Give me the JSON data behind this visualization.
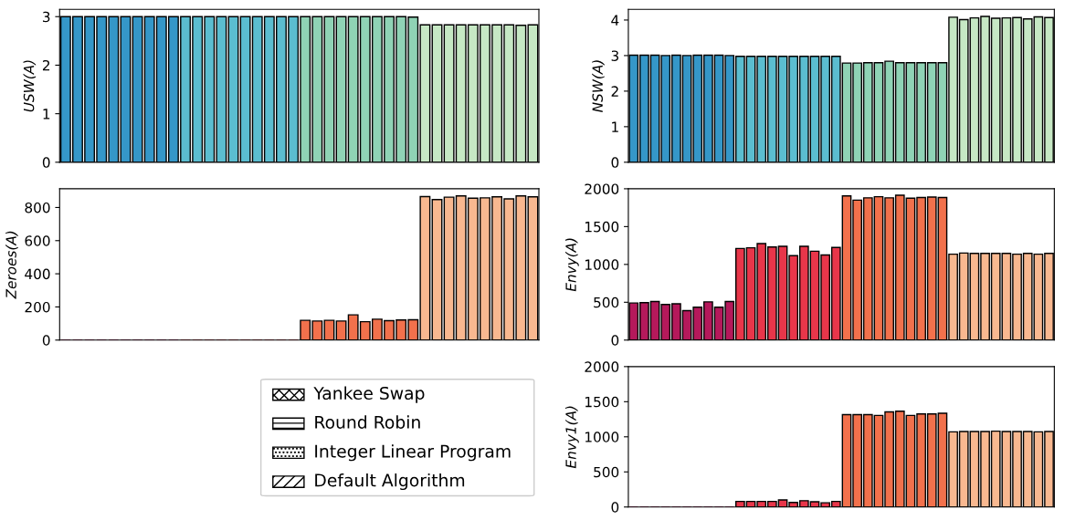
{
  "chart_data": [
    {
      "type": "bar",
      "ylabel": "USW(A)",
      "categories": [
        null,
        null,
        null,
        null,
        null,
        null,
        null,
        null,
        null,
        null,
        null,
        null,
        null,
        null,
        null,
        null,
        null,
        null,
        null,
        null,
        null,
        null,
        null,
        null,
        null,
        null,
        null,
        null,
        null,
        null,
        null,
        null,
        null,
        null,
        null,
        null,
        null,
        null,
        null,
        null
      ],
      "ylim": [
        0,
        3.15
      ],
      "yticks": [
        0,
        1,
        2,
        3
      ],
      "tick_labels": "y",
      "values": [
        3.0,
        3.0,
        3.0,
        3.0,
        3.0,
        3.0,
        3.0,
        3.0,
        3.0,
        3.0,
        3.0,
        3.0,
        3.0,
        3.0,
        3.0,
        3.0,
        3.0,
        3.0,
        3.0,
        3.0,
        3.0,
        3.0,
        3.0,
        3.0,
        3.0,
        3.0,
        3.0,
        3.0,
        3.0,
        2.99,
        2.83,
        2.83,
        2.83,
        2.83,
        2.83,
        2.83,
        2.83,
        2.83,
        2.82,
        2.83
      ],
      "colors": [
        "#3597c8",
        "#3597c8",
        "#3597c8",
        "#3597c8",
        "#3597c8",
        "#3597c8",
        "#3597c8",
        "#3597c8",
        "#3597c8",
        "#3597c8",
        "#5bbdd0",
        "#5bbdd0",
        "#5bbdd0",
        "#5bbdd0",
        "#5bbdd0",
        "#5bbdd0",
        "#5bbdd0",
        "#5bbdd0",
        "#5bbdd0",
        "#5bbdd0",
        "#8fd3b5",
        "#8fd3b5",
        "#8fd3b5",
        "#8fd3b5",
        "#8fd3b5",
        "#8fd3b5",
        "#8fd3b5",
        "#8fd3b5",
        "#8fd3b5",
        "#8fd3b5",
        "#c6e8c4",
        "#c6e8c4",
        "#c6e8c4",
        "#c6e8c4",
        "#c6e8c4",
        "#c6e8c4",
        "#c6e8c4",
        "#c6e8c4",
        "#c6e8c4",
        "#c6e8c4"
      ]
    },
    {
      "type": "bar",
      "ylabel": "NSW(A)",
      "categories": [
        null,
        null,
        null,
        null,
        null,
        null,
        null,
        null,
        null,
        null,
        null,
        null,
        null,
        null,
        null,
        null,
        null,
        null,
        null,
        null,
        null,
        null,
        null,
        null,
        null,
        null,
        null,
        null,
        null,
        null,
        null,
        null,
        null,
        null,
        null,
        null,
        null,
        null,
        null,
        null
      ],
      "ylim": [
        0,
        4.3
      ],
      "yticks": [
        0,
        1,
        2,
        3,
        4
      ],
      "tick_labels": "y",
      "values": [
        3.01,
        3.01,
        3.01,
        3.0,
        3.01,
        3.0,
        3.01,
        3.01,
        3.01,
        3.0,
        2.98,
        2.98,
        2.98,
        2.98,
        2.98,
        2.98,
        2.98,
        2.98,
        2.98,
        2.98,
        2.79,
        2.79,
        2.8,
        2.8,
        2.84,
        2.8,
        2.8,
        2.8,
        2.8,
        2.8,
        4.08,
        4.01,
        4.06,
        4.1,
        4.05,
        4.06,
        4.07,
        4.03,
        4.09,
        4.07
      ],
      "colors": [
        "#3597c8",
        "#3597c8",
        "#3597c8",
        "#3597c8",
        "#3597c8",
        "#3597c8",
        "#3597c8",
        "#3597c8",
        "#3597c8",
        "#3597c8",
        "#5bbdd0",
        "#5bbdd0",
        "#5bbdd0",
        "#5bbdd0",
        "#5bbdd0",
        "#5bbdd0",
        "#5bbdd0",
        "#5bbdd0",
        "#5bbdd0",
        "#5bbdd0",
        "#8fd3b5",
        "#8fd3b5",
        "#8fd3b5",
        "#8fd3b5",
        "#8fd3b5",
        "#8fd3b5",
        "#8fd3b5",
        "#8fd3b5",
        "#8fd3b5",
        "#8fd3b5",
        "#c6e8c4",
        "#c6e8c4",
        "#c6e8c4",
        "#c6e8c4",
        "#c6e8c4",
        "#c6e8c4",
        "#c6e8c4",
        "#c6e8c4",
        "#c6e8c4",
        "#c6e8c4"
      ]
    },
    {
      "type": "bar",
      "ylabel": "Zeroes(A)",
      "categories": [
        null,
        null,
        null,
        null,
        null,
        null,
        null,
        null,
        null,
        null,
        null,
        null,
        null,
        null,
        null,
        null,
        null,
        null,
        null,
        null,
        null,
        null,
        null,
        null,
        null,
        null,
        null,
        null,
        null,
        null,
        null,
        null,
        null,
        null,
        null,
        null,
        null,
        null,
        null,
        null
      ],
      "ylim": [
        0,
        913
      ],
      "yticks": [
        0,
        200,
        400,
        600,
        800
      ],
      "tick_labels": "y",
      "values": [
        0,
        0,
        0,
        0,
        0,
        0,
        0,
        0,
        0,
        0,
        0,
        0,
        0,
        0,
        0,
        0,
        0,
        0,
        0,
        0,
        119,
        115,
        119,
        115,
        152,
        111,
        126,
        117,
        121,
        123,
        866,
        848,
        862,
        870,
        856,
        858,
        864,
        852,
        870,
        864
      ],
      "colors": [
        "#b5195b",
        "#b5195b",
        "#b5195b",
        "#b5195b",
        "#b5195b",
        "#b5195b",
        "#b5195b",
        "#b5195b",
        "#b5195b",
        "#b5195b",
        "#e8364a",
        "#e8364a",
        "#e8364a",
        "#e8364a",
        "#e8364a",
        "#e8364a",
        "#e8364a",
        "#e8364a",
        "#e8364a",
        "#e8364a",
        "#f2714c",
        "#f2714c",
        "#f2714c",
        "#f2714c",
        "#f2714c",
        "#f2714c",
        "#f2714c",
        "#f2714c",
        "#f2714c",
        "#f2714c",
        "#f8b890",
        "#f8b890",
        "#f8b890",
        "#f8b890",
        "#f8b890",
        "#f8b890",
        "#f8b890",
        "#f8b890",
        "#f8b890",
        "#f8b890"
      ]
    },
    {
      "type": "bar",
      "ylabel": "Envy(A)",
      "categories": [
        null,
        null,
        null,
        null,
        null,
        null,
        null,
        null,
        null,
        null,
        null,
        null,
        null,
        null,
        null,
        null,
        null,
        null,
        null,
        null,
        null,
        null,
        null,
        null,
        null,
        null,
        null,
        null,
        null,
        null,
        null,
        null,
        null,
        null,
        null,
        null,
        null,
        null,
        null,
        null
      ],
      "ylim": [
        0,
        2000
      ],
      "yticks": [
        0,
        500,
        1000,
        1500,
        2000
      ],
      "tick_labels": "y",
      "values": [
        490,
        495,
        510,
        470,
        480,
        390,
        435,
        505,
        435,
        510,
        1210,
        1220,
        1275,
        1230,
        1240,
        1115,
        1240,
        1175,
        1125,
        1225,
        1905,
        1850,
        1880,
        1895,
        1880,
        1915,
        1875,
        1885,
        1890,
        1885,
        1135,
        1150,
        1145,
        1145,
        1145,
        1145,
        1135,
        1145,
        1135,
        1145
      ],
      "colors": [
        "#b5195b",
        "#b5195b",
        "#b5195b",
        "#b5195b",
        "#b5195b",
        "#b5195b",
        "#b5195b",
        "#b5195b",
        "#b5195b",
        "#b5195b",
        "#e8364a",
        "#e8364a",
        "#e8364a",
        "#e8364a",
        "#e8364a",
        "#e8364a",
        "#e8364a",
        "#e8364a",
        "#e8364a",
        "#e8364a",
        "#f2714c",
        "#f2714c",
        "#f2714c",
        "#f2714c",
        "#f2714c",
        "#f2714c",
        "#f2714c",
        "#f2714c",
        "#f2714c",
        "#f2714c",
        "#f8b890",
        "#f8b890",
        "#f8b890",
        "#f8b890",
        "#f8b890",
        "#f8b890",
        "#f8b890",
        "#f8b890",
        "#f8b890",
        "#f8b890"
      ]
    },
    {
      "type": "other",
      "annotations": [
        "Yankee Swap",
        "Round Robin",
        "Integer Linear Program",
        "Default Algorithm"
      ]
    },
    {
      "type": "bar",
      "ylabel": "Envy1(A)",
      "categories": [
        null,
        null,
        null,
        null,
        null,
        null,
        null,
        null,
        null,
        null,
        null,
        null,
        null,
        null,
        null,
        null,
        null,
        null,
        null,
        null,
        null,
        null,
        null,
        null,
        null,
        null,
        null,
        null,
        null,
        null,
        null,
        null,
        null,
        null,
        null,
        null,
        null,
        null,
        null,
        null
      ],
      "ylim": [
        0,
        2000
      ],
      "yticks": [
        0,
        500,
        1000,
        1500,
        2000
      ],
      "tick_labels": "y",
      "values": [
        0,
        0,
        0,
        0,
        0,
        0,
        0,
        0,
        0,
        0,
        80,
        80,
        80,
        80,
        100,
        65,
        90,
        75,
        60,
        80,
        1315,
        1315,
        1315,
        1305,
        1355,
        1365,
        1305,
        1325,
        1325,
        1335,
        1070,
        1075,
        1075,
        1075,
        1080,
        1075,
        1075,
        1075,
        1070,
        1075
      ],
      "colors": [
        "#b5195b",
        "#b5195b",
        "#b5195b",
        "#b5195b",
        "#b5195b",
        "#b5195b",
        "#b5195b",
        "#b5195b",
        "#b5195b",
        "#b5195b",
        "#e8364a",
        "#e8364a",
        "#e8364a",
        "#e8364a",
        "#e8364a",
        "#e8364a",
        "#e8364a",
        "#e8364a",
        "#e8364a",
        "#e8364a",
        "#f2714c",
        "#f2714c",
        "#f2714c",
        "#f2714c",
        "#f2714c",
        "#f2714c",
        "#f2714c",
        "#f2714c",
        "#f2714c",
        "#f2714c",
        "#f8b890",
        "#f8b890",
        "#f8b890",
        "#f8b890",
        "#f8b890",
        "#f8b890",
        "#f8b890",
        "#f8b890",
        "#f8b890",
        "#f8b890"
      ]
    }
  ]
}
